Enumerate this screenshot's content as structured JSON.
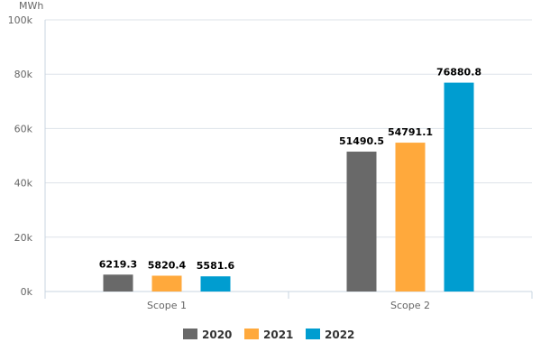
{
  "chart_data": {
    "type": "bar",
    "title": "",
    "xlabel": "",
    "ylabel": "MWh",
    "categories": [
      "Scope 1",
      "Scope 2"
    ],
    "series": [
      {
        "name": "2020",
        "color": "#696969",
        "values": [
          6219.3,
          51490.5
        ],
        "labels": [
          "6219.3",
          "51490.5"
        ]
      },
      {
        "name": "2021",
        "color": "#ffa93c",
        "values": [
          5820.4,
          54791.1
        ],
        "labels": [
          "5820.4",
          "54791.1"
        ]
      },
      {
        "name": "2022",
        "color": "#009dd0",
        "values": [
          5581.6,
          76880.8
        ],
        "labels": [
          "5581.6",
          "76880.8"
        ]
      }
    ],
    "ylim": [
      0,
      100000
    ],
    "yticks": [
      0,
      20000,
      40000,
      60000,
      80000,
      100000
    ],
    "ytick_labels": [
      "0k",
      "20k",
      "40k",
      "60k",
      "80k",
      "100k"
    ],
    "grid": true,
    "legend_position": "bottom-center"
  }
}
